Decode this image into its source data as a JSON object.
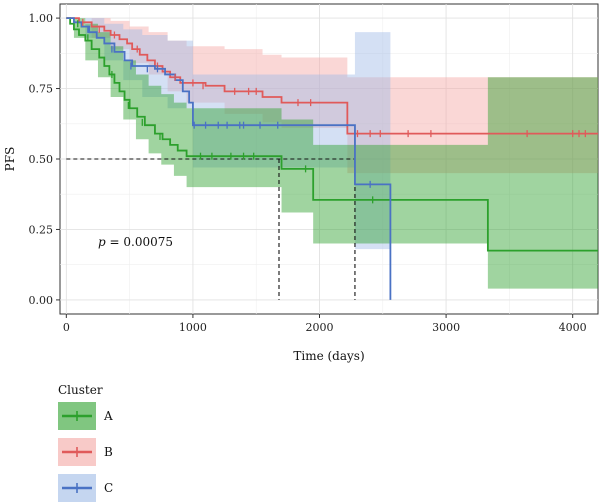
{
  "chart_data": {
    "type": "line",
    "subtype": "kaplan-meier",
    "title": "",
    "xlabel": "Time (days)",
    "ylabel": "PFS",
    "xlim": [
      -50,
      4200
    ],
    "ylim": [
      -0.05,
      1.05
    ],
    "x_ticks": [
      0,
      1000,
      2000,
      3000,
      4000
    ],
    "x_tick_labels": [
      "0",
      "1000",
      "2000",
      "3000",
      "4000"
    ],
    "y_ticks": [
      0,
      0.25,
      0.5,
      0.75,
      1
    ],
    "y_tick_labels": [
      "0.00",
      "0.25",
      "0.50",
      "0.75",
      "1.00"
    ],
    "grid": true,
    "annotation": {
      "text_prefix": "p",
      "text_suffix": " = 0.00075",
      "x": 100,
      "y": 0.2
    },
    "median_lines": {
      "y": 0.5,
      "x": [
        1680,
        2280
      ]
    },
    "legend": {
      "title": "Cluster",
      "position": "bottom-left"
    },
    "series": [
      {
        "name": "A",
        "color": "#2ca02c",
        "fill": "#2ca02c",
        "steps": [
          [
            0,
            1.0
          ],
          [
            30,
            0.98
          ],
          [
            60,
            0.96
          ],
          [
            100,
            0.94
          ],
          [
            150,
            0.92
          ],
          [
            200,
            0.89
          ],
          [
            260,
            0.86
          ],
          [
            300,
            0.83
          ],
          [
            340,
            0.8
          ],
          [
            380,
            0.77
          ],
          [
            420,
            0.74
          ],
          [
            460,
            0.71
          ],
          [
            500,
            0.68
          ],
          [
            560,
            0.65
          ],
          [
            620,
            0.62
          ],
          [
            700,
            0.59
          ],
          [
            760,
            0.57
          ],
          [
            820,
            0.55
          ],
          [
            880,
            0.53
          ],
          [
            950,
            0.51
          ],
          [
            1700,
            0.465
          ],
          [
            1950,
            0.355
          ],
          [
            3330,
            0.175
          ],
          [
            4200,
            0.175
          ]
        ],
        "upper": [
          [
            0,
            1.0
          ],
          [
            60,
            1.0
          ],
          [
            150,
            0.98
          ],
          [
            250,
            0.95
          ],
          [
            350,
            0.9
          ],
          [
            450,
            0.85
          ],
          [
            550,
            0.8
          ],
          [
            650,
            0.76
          ],
          [
            750,
            0.73
          ],
          [
            850,
            0.7
          ],
          [
            950,
            0.68
          ],
          [
            1700,
            0.64
          ],
          [
            1950,
            0.55
          ],
          [
            3330,
            0.79
          ],
          [
            4200,
            0.79
          ]
        ],
        "lower": [
          [
            0,
            1.0
          ],
          [
            60,
            0.93
          ],
          [
            150,
            0.85
          ],
          [
            250,
            0.79
          ],
          [
            350,
            0.72
          ],
          [
            450,
            0.64
          ],
          [
            550,
            0.57
          ],
          [
            650,
            0.52
          ],
          [
            750,
            0.48
          ],
          [
            850,
            0.44
          ],
          [
            950,
            0.4
          ],
          [
            1700,
            0.31
          ],
          [
            1950,
            0.2
          ],
          [
            3330,
            0.04
          ],
          [
            4200,
            0.04
          ]
        ],
        "censored": [
          [
            90,
            0.98
          ],
          [
            170,
            0.93
          ],
          [
            360,
            0.8
          ],
          [
            490,
            0.69
          ],
          [
            600,
            0.63
          ],
          [
            740,
            0.58
          ],
          [
            1060,
            0.51
          ],
          [
            1150,
            0.51
          ],
          [
            1300,
            0.51
          ],
          [
            1400,
            0.51
          ],
          [
            1480,
            0.51
          ],
          [
            1890,
            0.465
          ],
          [
            2420,
            0.355
          ]
        ]
      },
      {
        "name": "B",
        "color": "#e05a5a",
        "fill": "#f4a7a3",
        "steps": [
          [
            0,
            1.0
          ],
          [
            100,
            0.985
          ],
          [
            200,
            0.97
          ],
          [
            300,
            0.955
          ],
          [
            350,
            0.94
          ],
          [
            420,
            0.925
          ],
          [
            480,
            0.91
          ],
          [
            520,
            0.89
          ],
          [
            580,
            0.87
          ],
          [
            640,
            0.85
          ],
          [
            700,
            0.83
          ],
          [
            760,
            0.81
          ],
          [
            820,
            0.79
          ],
          [
            900,
            0.77
          ],
          [
            1100,
            0.76
          ],
          [
            1250,
            0.74
          ],
          [
            1550,
            0.72
          ],
          [
            1700,
            0.7
          ],
          [
            2220,
            0.59
          ],
          [
            4200,
            0.59
          ]
        ],
        "upper": [
          [
            0,
            1.0
          ],
          [
            200,
            1.0
          ],
          [
            350,
            0.99
          ],
          [
            500,
            0.97
          ],
          [
            650,
            0.95
          ],
          [
            800,
            0.92
          ],
          [
            950,
            0.9
          ],
          [
            1250,
            0.89
          ],
          [
            1550,
            0.87
          ],
          [
            1700,
            0.86
          ],
          [
            2220,
            0.79
          ],
          [
            4200,
            0.79
          ]
        ],
        "lower": [
          [
            0,
            1.0
          ],
          [
            200,
            0.93
          ],
          [
            350,
            0.89
          ],
          [
            500,
            0.84
          ],
          [
            650,
            0.8
          ],
          [
            800,
            0.74
          ],
          [
            950,
            0.7
          ],
          [
            1250,
            0.66
          ],
          [
            1550,
            0.63
          ],
          [
            1700,
            0.61
          ],
          [
            2220,
            0.45
          ],
          [
            4200,
            0.45
          ]
        ],
        "censored": [
          [
            130,
            0.985
          ],
          [
            260,
            0.96
          ],
          [
            380,
            0.94
          ],
          [
            560,
            0.89
          ],
          [
            720,
            0.83
          ],
          [
            860,
            0.79
          ],
          [
            1000,
            0.77
          ],
          [
            1080,
            0.76
          ],
          [
            1330,
            0.74
          ],
          [
            1440,
            0.74
          ],
          [
            1500,
            0.74
          ],
          [
            1830,
            0.7
          ],
          [
            1930,
            0.7
          ],
          [
            2300,
            0.59
          ],
          [
            2400,
            0.59
          ],
          [
            2480,
            0.59
          ],
          [
            2700,
            0.59
          ],
          [
            2880,
            0.59
          ],
          [
            3640,
            0.59
          ],
          [
            4000,
            0.59
          ],
          [
            4050,
            0.59
          ],
          [
            4100,
            0.59
          ]
        ]
      },
      {
        "name": "C",
        "color": "#4a72c4",
        "fill": "#9fbbe6",
        "steps": [
          [
            0,
            1.0
          ],
          [
            60,
            0.985
          ],
          [
            120,
            0.97
          ],
          [
            180,
            0.95
          ],
          [
            240,
            0.93
          ],
          [
            300,
            0.91
          ],
          [
            380,
            0.88
          ],
          [
            460,
            0.85
          ],
          [
            520,
            0.83
          ],
          [
            700,
            0.82
          ],
          [
            780,
            0.8
          ],
          [
            860,
            0.78
          ],
          [
            920,
            0.74
          ],
          [
            970,
            0.7
          ],
          [
            1000,
            0.62
          ],
          [
            2280,
            0.41
          ],
          [
            2560,
            0.0
          ]
        ],
        "upper": [
          [
            0,
            1.0
          ],
          [
            150,
            1.0
          ],
          [
            300,
            0.98
          ],
          [
            450,
            0.96
          ],
          [
            600,
            0.94
          ],
          [
            800,
            0.92
          ],
          [
            1000,
            0.8
          ],
          [
            2280,
            0.95
          ],
          [
            2560,
            0.95
          ]
        ],
        "lower": [
          [
            0,
            1.0
          ],
          [
            150,
            0.93
          ],
          [
            300,
            0.85
          ],
          [
            450,
            0.78
          ],
          [
            600,
            0.72
          ],
          [
            800,
            0.68
          ],
          [
            1000,
            0.47
          ],
          [
            2280,
            0.18
          ],
          [
            2560,
            0.18
          ]
        ],
        "censored": [
          [
            170,
            0.96
          ],
          [
            360,
            0.89
          ],
          [
            510,
            0.83
          ],
          [
            640,
            0.82
          ],
          [
            720,
            0.82
          ],
          [
            1010,
            0.62
          ],
          [
            1100,
            0.62
          ],
          [
            1200,
            0.62
          ],
          [
            1270,
            0.62
          ],
          [
            1370,
            0.62
          ],
          [
            1400,
            0.62
          ],
          [
            1530,
            0.62
          ],
          [
            1670,
            0.62
          ],
          [
            2400,
            0.41
          ]
        ]
      }
    ]
  }
}
